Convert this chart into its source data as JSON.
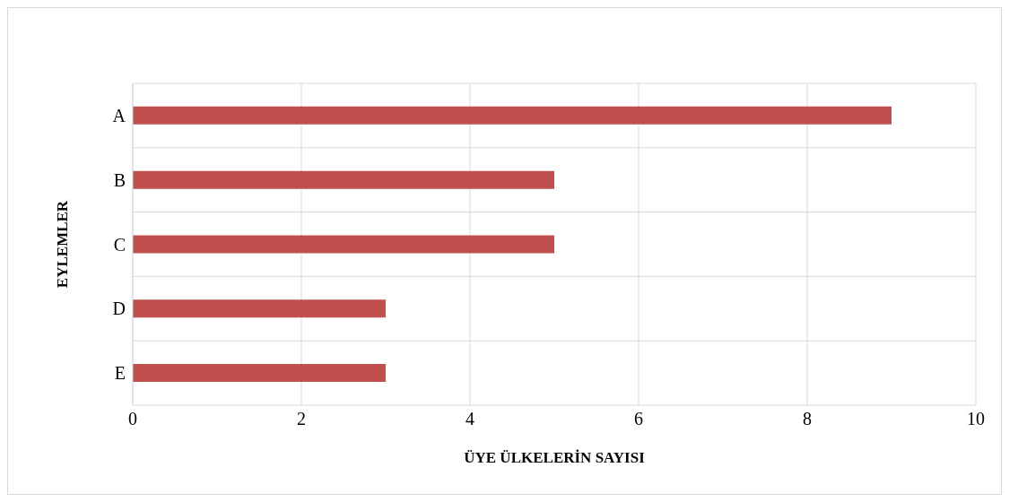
{
  "chart_data": {
    "type": "bar",
    "orientation": "horizontal",
    "categories": [
      "A",
      "B",
      "C",
      "D",
      "E"
    ],
    "values": [
      9,
      5,
      5,
      3,
      3
    ],
    "color": "#c0504d",
    "xlim": [
      0,
      10
    ],
    "xticks": [
      0,
      2,
      4,
      6,
      8,
      10
    ],
    "xlabel": "ÜYE ÜLKELERİN SAYISI",
    "ylabel": "EYLEMLER",
    "grid": true
  }
}
